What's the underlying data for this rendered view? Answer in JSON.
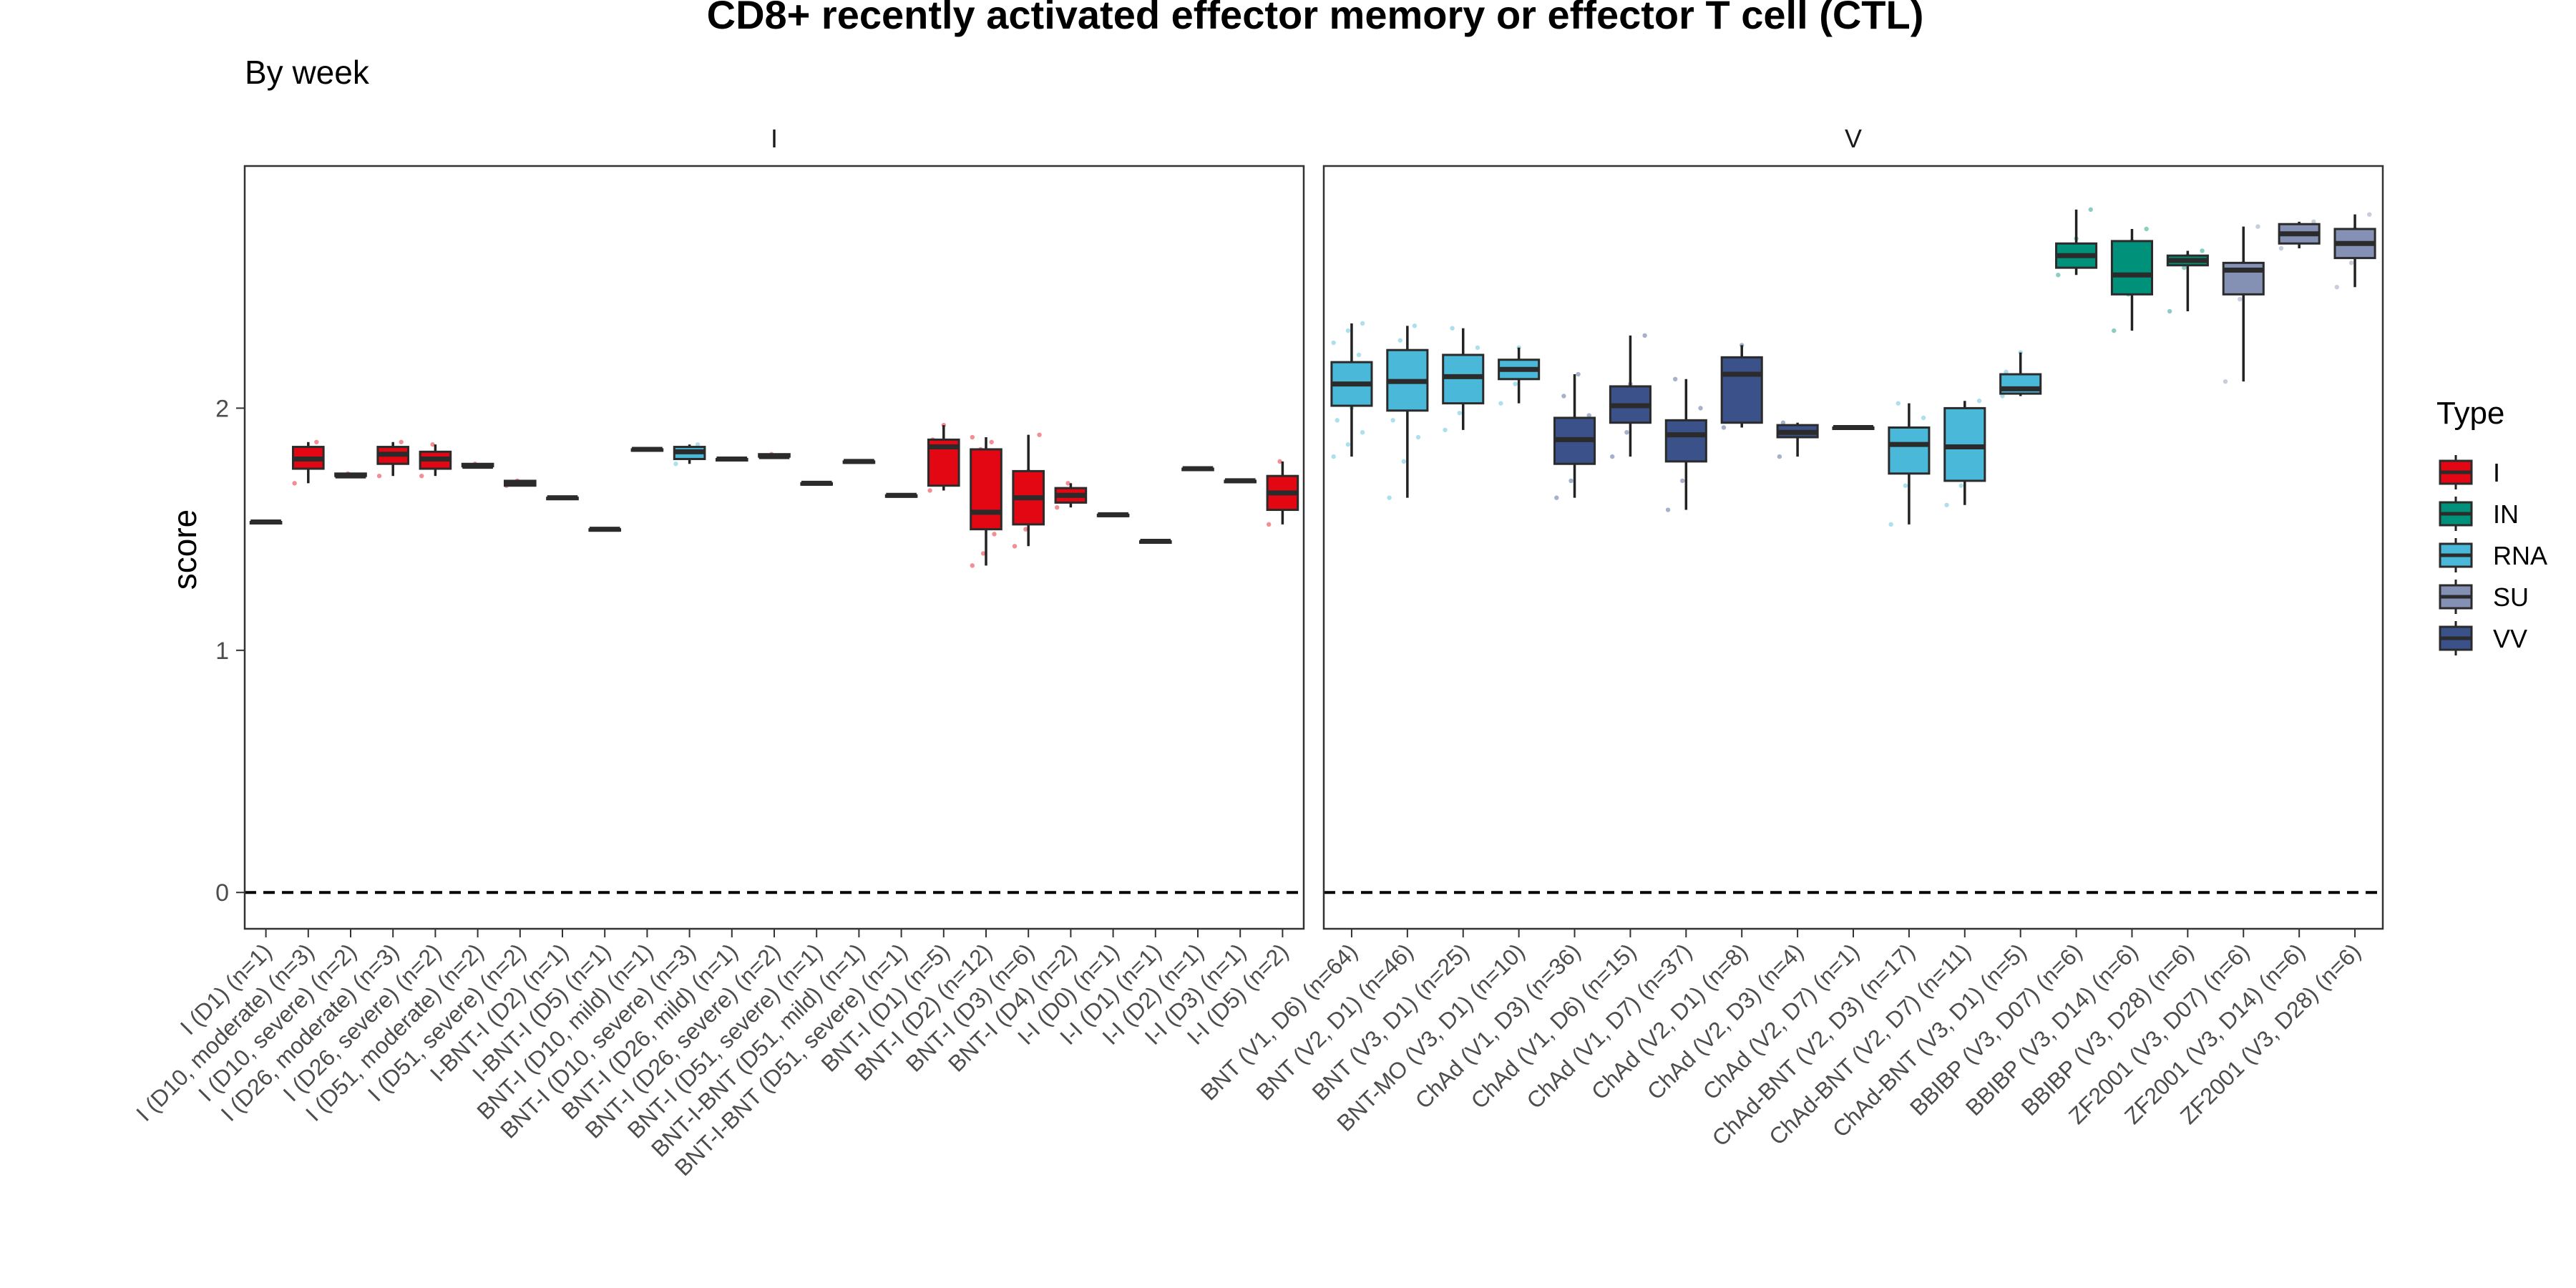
{
  "chart_data": {
    "type": "box",
    "title": "CD8+ recently activated effector memory or effector T cell (CTL)",
    "subtitle": "By week",
    "ylabel": "score",
    "xlabel": "",
    "ylim": [
      -0.15,
      3.0
    ],
    "yticks": [
      0,
      1,
      2
    ],
    "reference_line": 0,
    "legend": {
      "title": "Type",
      "placement": "right",
      "entries": [
        {
          "name": "I",
          "color": "#E30613"
        },
        {
          "name": "IN",
          "color": "#00917A"
        },
        {
          "name": "RNA",
          "color": "#4AB8D8"
        },
        {
          "name": "SU",
          "color": "#8591B4"
        },
        {
          "name": "VV",
          "color": "#3A5289"
        }
      ]
    },
    "panels": [
      {
        "strip": "I",
        "boxes": [
          {
            "label": "I (D1) (n=1)",
            "type": "I",
            "fill": "#E30613",
            "min": 1.53,
            "q1": 1.53,
            "median": 1.53,
            "q3": 1.53,
            "max": 1.53,
            "points": []
          },
          {
            "label": "I (D10, moderate) (n=3)",
            "type": "I",
            "fill": "#E30613",
            "min": 1.69,
            "q1": 1.75,
            "median": 1.79,
            "q3": 1.84,
            "max": 1.86,
            "points": [
              1.69,
              1.79,
              1.86
            ]
          },
          {
            "label": "I (D10, severe) (n=2)",
            "type": "I",
            "fill": "#E30613",
            "min": 1.72,
            "q1": 1.72,
            "median": 1.72,
            "q3": 1.73,
            "max": 1.73,
            "points": [
              1.72,
              1.73
            ]
          },
          {
            "label": "I (D26, moderate) (n=3)",
            "type": "I",
            "fill": "#E30613",
            "min": 1.72,
            "q1": 1.77,
            "median": 1.81,
            "q3": 1.84,
            "max": 1.86,
            "points": [
              1.72,
              1.81,
              1.86
            ]
          },
          {
            "label": "I (D26, severe) (n=2)",
            "type": "I",
            "fill": "#E30613",
            "min": 1.72,
            "q1": 1.75,
            "median": 1.79,
            "q3": 1.82,
            "max": 1.85,
            "points": [
              1.72,
              1.85
            ]
          },
          {
            "label": "I (D51, moderate) (n=2)",
            "type": "I",
            "fill": "#E30613",
            "min": 1.76,
            "q1": 1.76,
            "median": 1.76,
            "q3": 1.77,
            "max": 1.77,
            "points": [
              1.76,
              1.77
            ]
          },
          {
            "label": "I (D51, severe) (n=2)",
            "type": "I",
            "fill": "#E30613",
            "min": 1.68,
            "q1": 1.68,
            "median": 1.69,
            "q3": 1.7,
            "max": 1.7,
            "points": [
              1.68,
              1.7
            ]
          },
          {
            "label": "I-BNT-I (D2) (n=1)",
            "type": "I",
            "fill": "#E30613",
            "min": 1.63,
            "q1": 1.63,
            "median": 1.63,
            "q3": 1.63,
            "max": 1.63,
            "points": []
          },
          {
            "label": "I-BNT-I (D5) (n=1)",
            "type": "I",
            "fill": "#E30613",
            "min": 1.5,
            "q1": 1.5,
            "median": 1.5,
            "q3": 1.5,
            "max": 1.5,
            "points": []
          },
          {
            "label": "BNT-I (D10, mild) (n=1)",
            "type": "I",
            "fill": "#E30613",
            "min": 1.83,
            "q1": 1.83,
            "median": 1.83,
            "q3": 1.83,
            "max": 1.83,
            "points": []
          },
          {
            "label": "BNT-I (D10, severe) (n=3)",
            "type": "RNA",
            "fill": "#4AB8D8",
            "min": 1.77,
            "q1": 1.79,
            "median": 1.82,
            "q3": 1.84,
            "max": 1.85,
            "points": [
              1.77,
              1.82,
              1.85
            ]
          },
          {
            "label": "BNT-I (D26, mild) (n=1)",
            "type": "I",
            "fill": "#E30613",
            "min": 1.79,
            "q1": 1.79,
            "median": 1.79,
            "q3": 1.79,
            "max": 1.79,
            "points": []
          },
          {
            "label": "BNT-I (D26, severe) (n=2)",
            "type": "I",
            "fill": "#E30613",
            "min": 1.8,
            "q1": 1.8,
            "median": 1.8,
            "q3": 1.81,
            "max": 1.81,
            "points": [
              1.8,
              1.81
            ]
          },
          {
            "label": "BNT-I (D51, severe) (n=1)",
            "type": "I",
            "fill": "#E30613",
            "min": 1.69,
            "q1": 1.69,
            "median": 1.69,
            "q3": 1.69,
            "max": 1.69,
            "points": []
          },
          {
            "label": "BNT-I-BNT (D51, mild) (n=1)",
            "type": "I",
            "fill": "#E30613",
            "min": 1.78,
            "q1": 1.78,
            "median": 1.78,
            "q3": 1.78,
            "max": 1.78,
            "points": []
          },
          {
            "label": "BNT-I-BNT (D51, severe) (n=1)",
            "type": "I",
            "fill": "#E30613",
            "min": 1.64,
            "q1": 1.64,
            "median": 1.64,
            "q3": 1.64,
            "max": 1.64,
            "points": []
          },
          {
            "label": "BNT-I (D1) (n=5)",
            "type": "I",
            "fill": "#E30613",
            "min": 1.66,
            "q1": 1.68,
            "median": 1.84,
            "q3": 1.87,
            "max": 1.93,
            "points": [
              1.66,
              1.7,
              1.84,
              1.87,
              1.93
            ]
          },
          {
            "label": "BNT-I (D2) (n=12)",
            "type": "I",
            "fill": "#E30613",
            "min": 1.35,
            "q1": 1.5,
            "median": 1.57,
            "q3": 1.83,
            "max": 1.88,
            "points": [
              1.35,
              1.4,
              1.48,
              1.52,
              1.55,
              1.57,
              1.6,
              1.7,
              1.78,
              1.83,
              1.86,
              1.88
            ]
          },
          {
            "label": "BNT-I (D3) (n=6)",
            "type": "I",
            "fill": "#E30613",
            "min": 1.43,
            "q1": 1.52,
            "median": 1.63,
            "q3": 1.74,
            "max": 1.89,
            "points": [
              1.43,
              1.5,
              1.6,
              1.66,
              1.74,
              1.89
            ]
          },
          {
            "label": "BNT-I (D4) (n=2)",
            "type": "I",
            "fill": "#E30613",
            "min": 1.59,
            "q1": 1.61,
            "median": 1.64,
            "q3": 1.67,
            "max": 1.69,
            "points": [
              1.59,
              1.69
            ]
          },
          {
            "label": "I-I (D0) (n=1)",
            "type": "I",
            "fill": "#E30613",
            "min": 1.56,
            "q1": 1.56,
            "median": 1.56,
            "q3": 1.56,
            "max": 1.56,
            "points": []
          },
          {
            "label": "I-I (D1) (n=1)",
            "type": "I",
            "fill": "#E30613",
            "min": 1.45,
            "q1": 1.45,
            "median": 1.45,
            "q3": 1.45,
            "max": 1.45,
            "points": []
          },
          {
            "label": "I-I (D2) (n=1)",
            "type": "I",
            "fill": "#E30613",
            "min": 1.75,
            "q1": 1.75,
            "median": 1.75,
            "q3": 1.75,
            "max": 1.75,
            "points": []
          },
          {
            "label": "I-I (D3) (n=1)",
            "type": "I",
            "fill": "#E30613",
            "min": 1.7,
            "q1": 1.7,
            "median": 1.7,
            "q3": 1.7,
            "max": 1.7,
            "points": []
          },
          {
            "label": "I-I (D5) (n=2)",
            "type": "I",
            "fill": "#E30613",
            "min": 1.52,
            "q1": 1.58,
            "median": 1.65,
            "q3": 1.72,
            "max": 1.78,
            "points": [
              1.52,
              1.78
            ]
          }
        ]
      },
      {
        "strip": "V",
        "boxes": [
          {
            "label": "BNT (V1, D6) (n=64)",
            "type": "RNA",
            "fill": "#4AB8D8",
            "min": 1.8,
            "q1": 2.01,
            "median": 2.1,
            "q3": 2.19,
            "max": 2.35,
            "points": [
              1.8,
              1.85,
              1.9,
              1.95,
              2.0,
              2.03,
              2.06,
              2.1,
              2.14,
              2.18,
              2.22,
              2.27,
              2.32,
              2.35
            ]
          },
          {
            "label": "BNT (V2, D1) (n=46)",
            "type": "RNA",
            "fill": "#4AB8D8",
            "min": 1.63,
            "q1": 1.99,
            "median": 2.11,
            "q3": 2.24,
            "max": 2.34,
            "points": [
              1.63,
              1.78,
              1.88,
              1.95,
              2.02,
              2.08,
              2.12,
              2.17,
              2.22,
              2.28,
              2.34
            ]
          },
          {
            "label": "BNT (V3, D1) (n=25)",
            "type": "RNA",
            "fill": "#4AB8D8",
            "min": 1.91,
            "q1": 2.02,
            "median": 2.13,
            "q3": 2.22,
            "max": 2.33,
            "points": [
              1.91,
              1.98,
              2.05,
              2.12,
              2.18,
              2.25,
              2.33
            ]
          },
          {
            "label": "BNT-MO (V3, D1) (n=10)",
            "type": "RNA",
            "fill": "#4AB8D8",
            "min": 2.02,
            "q1": 2.12,
            "median": 2.16,
            "q3": 2.2,
            "max": 2.25,
            "points": [
              2.02,
              2.1,
              2.15,
              2.19,
              2.25
            ]
          },
          {
            "label": "ChAd (V1, D3) (n=36)",
            "type": "VV",
            "fill": "#3A5289",
            "min": 1.63,
            "q1": 1.77,
            "median": 1.87,
            "q3": 1.96,
            "max": 2.14,
            "points": [
              1.63,
              1.7,
              1.78,
              1.85,
              1.9,
              1.97,
              2.05,
              2.14
            ]
          },
          {
            "label": "ChAd (V1, D6) (n=15)",
            "type": "VV",
            "fill": "#3A5289",
            "min": 1.8,
            "q1": 1.94,
            "median": 2.01,
            "q3": 2.09,
            "max": 2.3,
            "points": [
              1.8,
              1.9,
              1.98,
              2.03,
              2.1,
              2.3
            ]
          },
          {
            "label": "ChAd (V1, D7) (n=37)",
            "type": "VV",
            "fill": "#3A5289",
            "min": 1.58,
            "q1": 1.78,
            "median": 1.89,
            "q3": 1.95,
            "max": 2.12,
            "points": [
              1.58,
              1.7,
              1.8,
              1.88,
              1.93,
              2.0,
              2.12
            ]
          },
          {
            "label": "ChAd (V2, D1) (n=8)",
            "type": "VV",
            "fill": "#3A5289",
            "min": 1.92,
            "q1": 1.94,
            "median": 2.14,
            "q3": 2.21,
            "max": 2.26,
            "points": [
              1.92,
              1.95,
              2.14,
              2.2,
              2.26
            ]
          },
          {
            "label": "ChAd (V2, D3) (n=4)",
            "type": "VV",
            "fill": "#3A5289",
            "min": 1.8,
            "q1": 1.88,
            "median": 1.9,
            "q3": 1.93,
            "max": 1.94,
            "points": [
              1.8,
              1.89,
              1.92,
              1.94
            ]
          },
          {
            "label": "ChAd (V2, D7) (n=1)",
            "type": "VV",
            "fill": "#3A5289",
            "min": 1.92,
            "q1": 1.92,
            "median": 1.92,
            "q3": 1.92,
            "max": 1.92,
            "points": []
          },
          {
            "label": "ChAd-BNT (V2, D3) (n=17)",
            "type": "RNA",
            "fill": "#4AB8D8",
            "min": 1.52,
            "q1": 1.73,
            "median": 1.85,
            "q3": 1.92,
            "max": 2.02,
            "points": [
              1.52,
              1.68,
              1.78,
              1.85,
              1.9,
              1.96,
              2.02
            ]
          },
          {
            "label": "ChAd-BNT (V2, D7) (n=11)",
            "type": "RNA",
            "fill": "#4AB8D8",
            "min": 1.6,
            "q1": 1.7,
            "median": 1.84,
            "q3": 2.0,
            "max": 2.03,
            "points": [
              1.6,
              1.68,
              1.78,
              1.86,
              1.95,
              2.03
            ]
          },
          {
            "label": "ChAd-BNT (V3, D1) (n=5)",
            "type": "RNA",
            "fill": "#4AB8D8",
            "min": 2.05,
            "q1": 2.06,
            "median": 2.08,
            "q3": 2.14,
            "max": 2.23,
            "points": [
              2.05,
              2.07,
              2.1,
              2.15,
              2.23
            ]
          },
          {
            "label": "BBIBP (V3, D07) (n=6)",
            "type": "IN",
            "fill": "#00917A",
            "min": 2.55,
            "q1": 2.58,
            "median": 2.63,
            "q3": 2.68,
            "max": 2.82,
            "points": [
              2.55,
              2.59,
              2.63,
              2.66,
              2.7,
              2.82
            ]
          },
          {
            "label": "BBIBP (V3, D14) (n=6)",
            "type": "IN",
            "fill": "#00917A",
            "min": 2.32,
            "q1": 2.47,
            "median": 2.55,
            "q3": 2.69,
            "max": 2.74,
            "points": [
              2.32,
              2.47,
              2.53,
              2.58,
              2.69,
              2.74
            ]
          },
          {
            "label": "BBIBP (V3, D28) (n=6)",
            "type": "IN",
            "fill": "#00917A",
            "min": 2.4,
            "q1": 2.59,
            "median": 2.61,
            "q3": 2.63,
            "max": 2.65,
            "points": [
              2.4,
              2.58,
              2.6,
              2.62,
              2.63,
              2.65
            ]
          },
          {
            "label": "ZF2001 (V3, D07) (n=6)",
            "type": "SU",
            "fill": "#8591B4",
            "min": 2.11,
            "q1": 2.47,
            "median": 2.57,
            "q3": 2.6,
            "max": 2.75,
            "points": [
              2.11,
              2.45,
              2.55,
              2.58,
              2.6,
              2.75
            ]
          },
          {
            "label": "ZF2001 (V3, D14) (n=6)",
            "type": "SU",
            "fill": "#8591B4",
            "min": 2.66,
            "q1": 2.68,
            "median": 2.72,
            "q3": 2.76,
            "max": 2.77,
            "points": [
              2.66,
              2.69,
              2.71,
              2.74,
              2.76,
              2.77
            ]
          },
          {
            "label": "ZF2001 (V3, D28) (n=6)",
            "type": "SU",
            "fill": "#8591B4",
            "min": 2.5,
            "q1": 2.62,
            "median": 2.68,
            "q3": 2.74,
            "max": 2.8,
            "points": [
              2.5,
              2.6,
              2.66,
              2.7,
              2.74,
              2.8
            ]
          }
        ]
      }
    ]
  }
}
